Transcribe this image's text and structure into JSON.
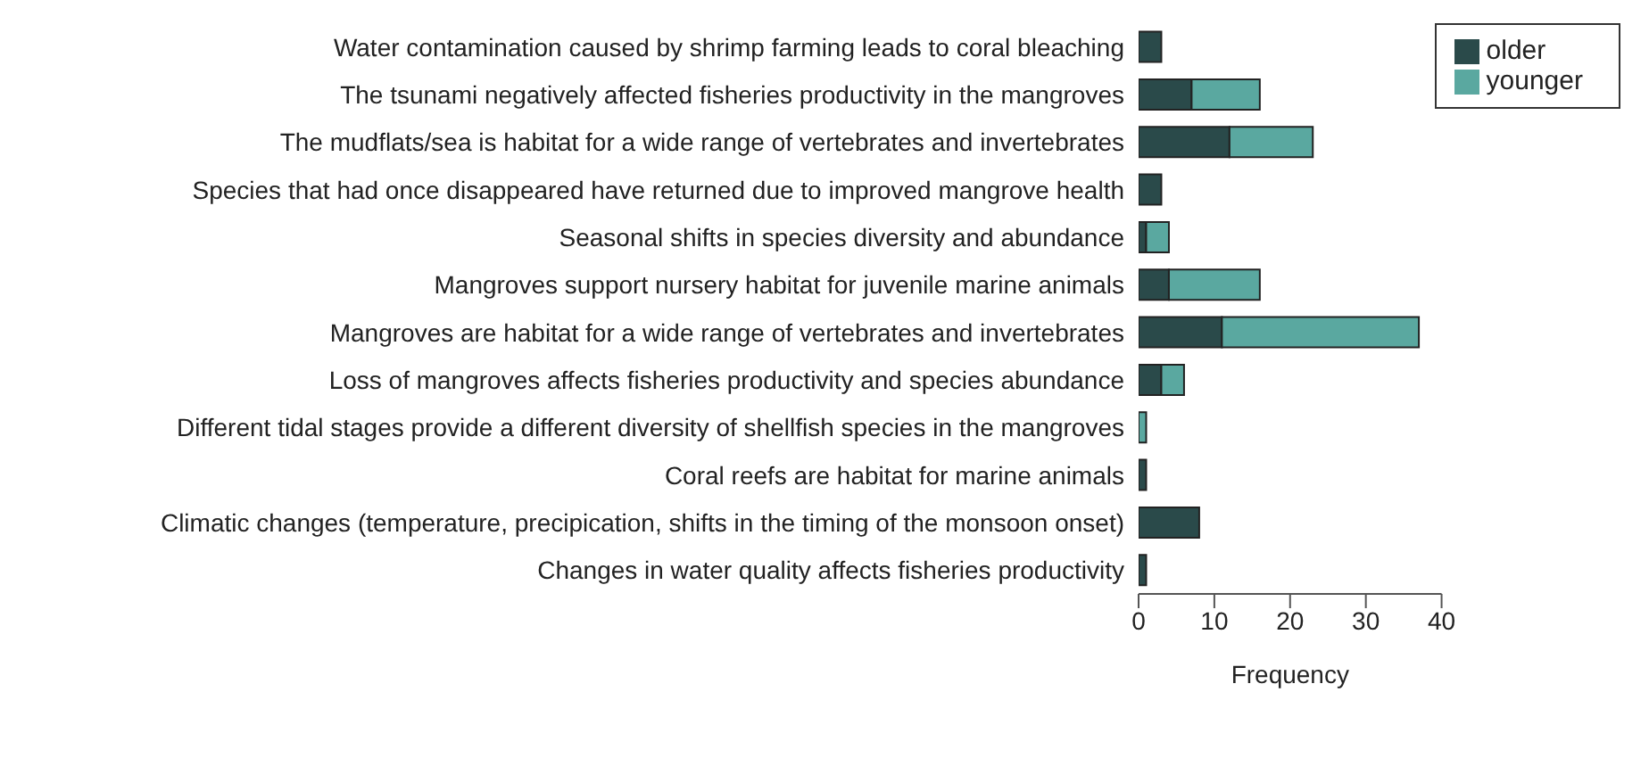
{
  "chart_data": {
    "type": "bar",
    "orientation": "horizontal",
    "stacked": true,
    "xlabel": "Frequency",
    "categories": [
      "Water contamination caused by shrimp farming leads to coral bleaching",
      "The tsunami negatively affected fisheries productivity in the mangroves",
      "The mudflats/sea is habitat for a wide range of vertebrates and invertebrates",
      "Species that had once disappeared have returned due to improved mangrove health",
      "Seasonal shifts in species diversity and abundance",
      "Mangroves support nursery habitat for juvenile marine animals",
      "Mangroves are habitat for a wide range of vertebrates and invertebrates",
      "Loss of mangroves affects fisheries productivity and species abundance",
      "Different tidal stages provide a different diversity of shellfish species in the mangroves",
      "Coral reefs are habitat for marine animals",
      "Climatic changes (temperature, precipication, shifts in the timing of the monsoon onset)",
      "Changes in water quality affects fisheries productivity"
    ],
    "series": [
      {
        "name": "older",
        "color": "#2a4a4a",
        "values": [
          3,
          7,
          12,
          3,
          1,
          4,
          11,
          3,
          0,
          1,
          8,
          1
        ]
      },
      {
        "name": "younger",
        "color": "#5aa8a0",
        "values": [
          0,
          9,
          11,
          0,
          3,
          12,
          26,
          3,
          1,
          0,
          0,
          0
        ]
      }
    ],
    "xlim": [
      0,
      40
    ],
    "xticks": [
      0,
      10,
      20,
      30,
      40
    ],
    "grid": false,
    "legend": "top right"
  }
}
